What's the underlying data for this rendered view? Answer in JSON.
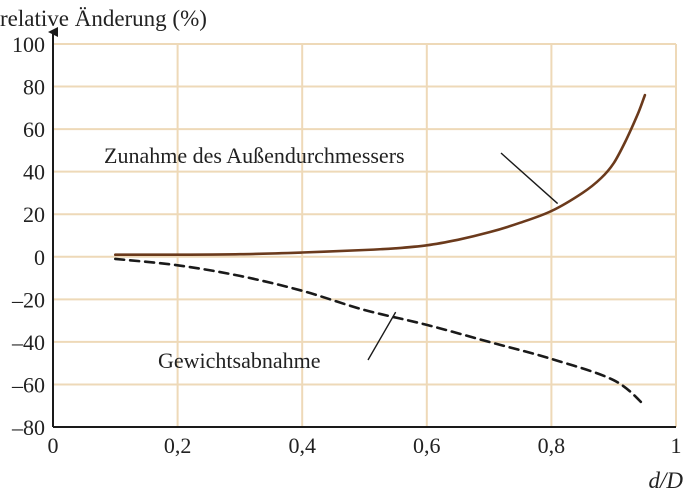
{
  "chart_data": {
    "type": "line",
    "xlabel": "d/D",
    "ylabel": "relative Änderung (%)",
    "xlim": [
      0,
      1
    ],
    "ylim": [
      -80,
      100
    ],
    "xticks": [
      0,
      0.2,
      0.4,
      0.6,
      0.8,
      1
    ],
    "xtick_labels": [
      "0",
      "0,2",
      "0,4",
      "0,6",
      "0,8",
      "1"
    ],
    "yticks": [
      -80,
      -60,
      -40,
      -20,
      0,
      20,
      40,
      60,
      80,
      100
    ],
    "ytick_labels": [
      "–80",
      "–60",
      "–40",
      "–20",
      "0",
      "20",
      "40",
      "60",
      "80",
      "100"
    ],
    "grid": true,
    "series": [
      {
        "name": "Zunahme des Außendurchmessers",
        "style": "solid",
        "color": "#6b3a1c",
        "x": [
          0.1,
          0.2,
          0.3,
          0.4,
          0.5,
          0.55,
          0.6,
          0.65,
          0.7,
          0.75,
          0.8,
          0.85,
          0.88,
          0.9,
          0.92,
          0.94,
          0.95
        ],
        "y": [
          1,
          1,
          1.2,
          2,
          3.2,
          4,
          5.4,
          8,
          11.5,
          16,
          21.5,
          30,
          37,
          44,
          55,
          68,
          76
        ]
      },
      {
        "name": "Gewichtsabnahme",
        "style": "dashed",
        "color": "#1a1a1a",
        "x": [
          0.1,
          0.2,
          0.3,
          0.4,
          0.5,
          0.6,
          0.7,
          0.8,
          0.9,
          0.95
        ],
        "y": [
          -1,
          -4,
          -9,
          -16,
          -25,
          -32,
          -40,
          -48,
          -58,
          -70
        ]
      }
    ],
    "annotations": [
      {
        "text": "Zunahme des Außendurchmessers",
        "points_to": [
          0.81,
          25
        ]
      },
      {
        "text": "Gewichtsabnahme",
        "points_to": [
          0.55,
          -26
        ]
      }
    ]
  }
}
